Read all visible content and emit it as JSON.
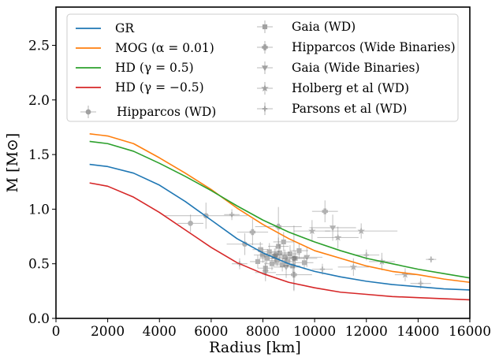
{
  "chart_data": {
    "type": "line",
    "xlabel": "Radius [km]",
    "ylabel": "M [M⊙]",
    "xlim": [
      0,
      16000
    ],
    "ylim": [
      0,
      2.85
    ],
    "xticks": [
      0,
      2000,
      4000,
      6000,
      8000,
      10000,
      12000,
      14000,
      16000
    ],
    "yticks": [
      0.0,
      0.5,
      1.0,
      1.5,
      2.0,
      2.5
    ],
    "xtick_labels": [
      "0",
      "2000",
      "4000",
      "6000",
      "8000",
      "10000",
      "12000",
      "14000",
      "16000"
    ],
    "ytick_labels": [
      "0.0",
      "0.5",
      "1.0",
      "1.5",
      "2.0",
      "2.5"
    ],
    "legend_position": "top",
    "series": [
      {
        "name": "GR",
        "color": "#1f77b4",
        "x": [
          1300,
          2000,
          3000,
          4000,
          5000,
          6000,
          7000,
          8000,
          9000,
          10000,
          11000,
          12000,
          13000,
          14000,
          15000,
          16000
        ],
        "y": [
          1.41,
          1.39,
          1.33,
          1.22,
          1.07,
          0.9,
          0.73,
          0.6,
          0.5,
          0.43,
          0.38,
          0.34,
          0.31,
          0.29,
          0.27,
          0.26
        ]
      },
      {
        "name": "MOG (α = 0.01)",
        "color": "#ff7f0e",
        "x": [
          1300,
          2000,
          3000,
          4000,
          5000,
          6000,
          7000,
          8000,
          9000,
          10000,
          11000,
          12000,
          13000,
          14000,
          15000,
          16000
        ],
        "y": [
          1.69,
          1.67,
          1.6,
          1.47,
          1.33,
          1.18,
          1.01,
          0.86,
          0.73,
          0.62,
          0.55,
          0.48,
          0.43,
          0.4,
          0.36,
          0.33
        ]
      },
      {
        "name": "HD (γ = 0.5)",
        "color": "#2ca02c",
        "x": [
          1300,
          2000,
          3000,
          4000,
          5000,
          6000,
          7000,
          8000,
          9000,
          10000,
          11000,
          12000,
          13000,
          14000,
          15000,
          16000
        ],
        "y": [
          1.62,
          1.6,
          1.53,
          1.42,
          1.3,
          1.17,
          1.03,
          0.9,
          0.79,
          0.7,
          0.62,
          0.55,
          0.5,
          0.45,
          0.41,
          0.37
        ]
      },
      {
        "name": "HD (γ = −0.5)",
        "color": "#d62728",
        "x": [
          1300,
          2000,
          3000,
          4000,
          5000,
          6000,
          7000,
          8000,
          9000,
          10000,
          11000,
          12000,
          13000,
          14000,
          15000,
          16000
        ],
        "y": [
          1.24,
          1.21,
          1.11,
          0.97,
          0.81,
          0.65,
          0.51,
          0.41,
          0.33,
          0.28,
          0.24,
          0.22,
          0.2,
          0.19,
          0.18,
          0.17
        ]
      }
    ],
    "error_series": [
      {
        "name": "Hipparcos (WD)",
        "marker": "o",
        "color": "#808080",
        "points": [
          {
            "x": 5200,
            "y": 0.87,
            "xerr": 500,
            "yerr": 0.08
          },
          {
            "x": 5800,
            "y": 0.94,
            "xerr": 1600,
            "yerr": 0.12
          },
          {
            "x": 7300,
            "y": 0.68,
            "xerr": 700,
            "yerr": 0.1
          },
          {
            "x": 8500,
            "y": 0.58,
            "xerr": 600,
            "yerr": 0.08
          },
          {
            "x": 9200,
            "y": 0.55,
            "xerr": 900,
            "yerr": 0.3
          }
        ]
      },
      {
        "name": "Gaia (WD)",
        "marker": "s",
        "color": "#808080",
        "points": [
          {
            "x": 7800,
            "y": 0.52,
            "xerr": 300,
            "yerr": 0.06
          },
          {
            "x": 8000,
            "y": 0.58,
            "xerr": 350,
            "yerr": 0.07
          },
          {
            "x": 8150,
            "y": 0.55,
            "xerr": 300,
            "yerr": 0.05
          },
          {
            "x": 8250,
            "y": 0.61,
            "xerr": 400,
            "yerr": 0.08
          },
          {
            "x": 8350,
            "y": 0.5,
            "xerr": 300,
            "yerr": 0.06
          },
          {
            "x": 8450,
            "y": 0.57,
            "xerr": 350,
            "yerr": 0.07
          },
          {
            "x": 8550,
            "y": 0.53,
            "xerr": 300,
            "yerr": 0.05
          },
          {
            "x": 8650,
            "y": 0.6,
            "xerr": 400,
            "yerr": 0.08
          },
          {
            "x": 8750,
            "y": 0.49,
            "xerr": 300,
            "yerr": 0.06
          },
          {
            "x": 8850,
            "y": 0.56,
            "xerr": 350,
            "yerr": 0.07
          },
          {
            "x": 8950,
            "y": 0.52,
            "xerr": 300,
            "yerr": 0.05
          },
          {
            "x": 9050,
            "y": 0.59,
            "xerr": 400,
            "yerr": 0.08
          },
          {
            "x": 9150,
            "y": 0.48,
            "xerr": 300,
            "yerr": 0.06
          },
          {
            "x": 9250,
            "y": 0.55,
            "xerr": 350,
            "yerr": 0.07
          },
          {
            "x": 8100,
            "y": 0.46,
            "xerr": 300,
            "yerr": 0.06
          },
          {
            "x": 8600,
            "y": 0.66,
            "xerr": 400,
            "yerr": 0.08
          },
          {
            "x": 9400,
            "y": 0.62,
            "xerr": 350,
            "yerr": 0.07
          },
          {
            "x": 7900,
            "y": 0.63,
            "xerr": 300,
            "yerr": 0.07
          },
          {
            "x": 8800,
            "y": 0.7,
            "xerr": 400,
            "yerr": 0.09
          },
          {
            "x": 9600,
            "y": 0.51,
            "xerr": 350,
            "yerr": 0.06
          }
        ]
      },
      {
        "name": "Hipparcos (Wide Binaries)",
        "marker": "P",
        "color": "#808080",
        "points": [
          {
            "x": 7600,
            "y": 0.79,
            "xerr": 600,
            "yerr": 0.12
          },
          {
            "x": 8600,
            "y": 0.84,
            "xerr": 900,
            "yerr": 0.18
          },
          {
            "x": 9200,
            "y": 0.4,
            "xerr": 700,
            "yerr": 0.14
          },
          {
            "x": 10400,
            "y": 0.98,
            "xerr": 500,
            "yerr": 0.1
          }
        ]
      },
      {
        "name": "Gaia (Wide Binaries)",
        "marker": "v",
        "color": "#808080",
        "points": [
          {
            "x": 8100,
            "y": 0.42,
            "xerr": 400,
            "yerr": 0.08
          },
          {
            "x": 8900,
            "y": 0.47,
            "xerr": 500,
            "yerr": 0.1
          },
          {
            "x": 9700,
            "y": 0.56,
            "xerr": 600,
            "yerr": 0.09
          },
          {
            "x": 10700,
            "y": 0.83,
            "xerr": 900,
            "yerr": 0.12
          }
        ]
      },
      {
        "name": "Holberg et al (WD)",
        "marker": "*",
        "color": "#808080",
        "points": [
          {
            "x": 9900,
            "y": 0.8,
            "xerr": 700,
            "yerr": 0.1
          },
          {
            "x": 10900,
            "y": 0.74,
            "xerr": 800,
            "yerr": 0.1
          },
          {
            "x": 11500,
            "y": 0.47,
            "xerr": 600,
            "yerr": 0.08
          },
          {
            "x": 11800,
            "y": 0.8,
            "xerr": 1400,
            "yerr": 0.07
          },
          {
            "x": 12600,
            "y": 0.52,
            "xerr": 500,
            "yerr": 0.08
          },
          {
            "x": 13500,
            "y": 0.4,
            "xerr": 400,
            "yerr": 0.06
          }
        ]
      },
      {
        "name": "Parsons et al (WD)",
        "marker": "+",
        "color": "#808080",
        "points": [
          {
            "x": 6800,
            "y": 0.95,
            "xerr": 300,
            "yerr": 0.05
          },
          {
            "x": 7100,
            "y": 0.5,
            "xerr": 300,
            "yerr": 0.05
          },
          {
            "x": 10300,
            "y": 0.45,
            "xerr": 400,
            "yerr": 0.05
          },
          {
            "x": 12000,
            "y": 0.58,
            "xerr": 500,
            "yerr": 0.05
          },
          {
            "x": 14100,
            "y": 0.32,
            "xerr": 400,
            "yerr": 0.05
          },
          {
            "x": 14500,
            "y": 0.54,
            "xerr": 200,
            "yerr": 0.03
          }
        ]
      }
    ]
  }
}
